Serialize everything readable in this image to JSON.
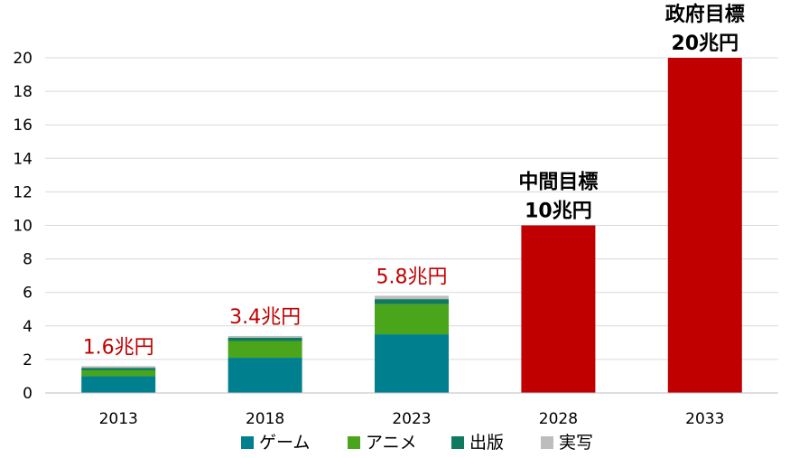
{
  "chart_data": {
    "type": "bar",
    "stacked": true,
    "categories": [
      "2013",
      "2018",
      "2023",
      "2028",
      "2033"
    ],
    "series": [
      {
        "name": "ゲーム",
        "color": "#00808f",
        "values": [
          1.0,
          2.1,
          3.5,
          0,
          0
        ]
      },
      {
        "name": "アニメ",
        "color": "#4aa51b",
        "values": [
          0.35,
          1.0,
          1.8,
          0,
          0
        ]
      },
      {
        "name": "出版",
        "color": "#0f7a5f",
        "values": [
          0.15,
          0.2,
          0.3,
          0,
          0
        ]
      },
      {
        "name": "実写",
        "color": "#bdbdbd",
        "values": [
          0.1,
          0.1,
          0.2,
          0,
          0
        ]
      }
    ],
    "targets": [
      {
        "category": "2028",
        "value": 10,
        "color": "#c00000",
        "label_line1": "中間目標",
        "label_line2": "10兆円"
      },
      {
        "category": "2033",
        "value": 20,
        "color": "#c00000",
        "label_line1": "政府目標",
        "label_line2": "20兆円"
      }
    ],
    "total_labels": [
      {
        "category": "2013",
        "value": 1.6,
        "text": "1.6兆円"
      },
      {
        "category": "2018",
        "value": 3.4,
        "text": "3.4兆円"
      },
      {
        "category": "2023",
        "value": 5.8,
        "text": "5.8兆円"
      }
    ],
    "total_label_color": "#c00000",
    "ylim": [
      0,
      20
    ],
    "yticks": [
      "0",
      "2",
      "4",
      "6",
      "8",
      "10",
      "12",
      "14",
      "16",
      "18",
      "20"
    ],
    "grid": true,
    "grid_color": "#d9d9d9",
    "legend_position": "bottom",
    "title": "",
    "xlabel": "",
    "ylabel": ""
  }
}
